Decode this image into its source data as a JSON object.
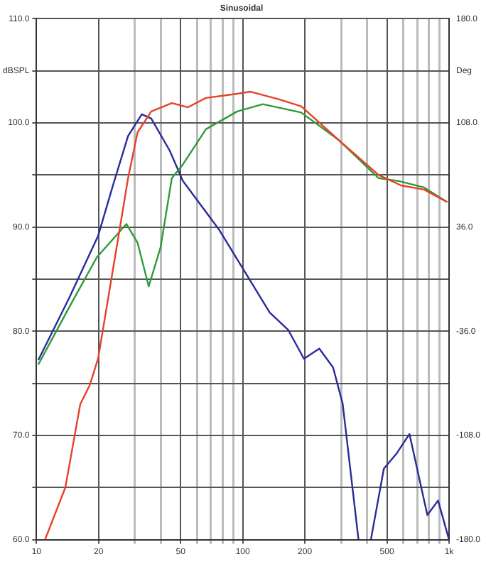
{
  "chart_data": {
    "type": "line",
    "title": "Sinusoidal",
    "log": "x",
    "grid": true,
    "legend": false,
    "marker": "none",
    "line_style": "solid",
    "xlim": [
      10,
      1000
    ],
    "xticks": [
      {
        "value": 10,
        "label": "10"
      },
      {
        "value": 20,
        "label": "20"
      },
      {
        "value": 30,
        "label": null
      },
      {
        "value": 40,
        "label": null
      },
      {
        "value": 50,
        "label": "50"
      },
      {
        "value": 60,
        "label": null
      },
      {
        "value": 70,
        "label": null
      },
      {
        "value": 80,
        "label": null
      },
      {
        "value": 90,
        "label": null
      },
      {
        "value": 100,
        "label": "100"
      },
      {
        "value": 200,
        "label": "200"
      },
      {
        "value": 300,
        "label": null
      },
      {
        "value": 400,
        "label": null
      },
      {
        "value": 500,
        "label": "500"
      },
      {
        "value": 600,
        "label": null
      },
      {
        "value": 700,
        "label": null
      },
      {
        "value": 800,
        "label": null
      },
      {
        "value": 900,
        "label": null
      },
      {
        "value": 1000,
        "label": "1k"
      }
    ],
    "ylim": [
      60,
      110
    ],
    "yticks": [
      {
        "value": 60,
        "label": "60.0"
      },
      {
        "value": 65,
        "label": null
      },
      {
        "value": 70,
        "label": "70.0"
      },
      {
        "value": 75,
        "label": null
      },
      {
        "value": 80,
        "label": "80.0"
      },
      {
        "value": 85,
        "label": null
      },
      {
        "value": 90,
        "label": "90.0"
      },
      {
        "value": 95,
        "label": null
      },
      {
        "value": 100,
        "label": "100.0"
      },
      {
        "value": 105,
        "label": "dBSPL"
      },
      {
        "value": 110,
        "label": "110.0"
      }
    ],
    "y2lim": [
      -180,
      180
    ],
    "y2ticks": [
      {
        "value": -180,
        "label": "-180.0"
      },
      {
        "value": -144,
        "label": null
      },
      {
        "value": -108,
        "label": "-108.0"
      },
      {
        "value": -72,
        "label": null
      },
      {
        "value": -36,
        "label": "-36.0"
      },
      {
        "value": 0,
        "label": null
      },
      {
        "value": 36,
        "label": "36.0"
      },
      {
        "value": 72,
        "label": null
      },
      {
        "value": 108,
        "label": "108.0"
      },
      {
        "value": 144,
        "label": "Deg"
      },
      {
        "value": 180,
        "label": "180.0"
      }
    ],
    "series": [
      {
        "color": "#e8402a",
        "x": [
          11,
          13.8,
          16.3,
          18.1,
          19.9,
          25.4,
          27.8,
          30.9,
          36,
          45.3,
          54.2,
          66.3,
          94,
          109,
          148,
          192,
          290,
          456,
          585,
          757,
          980
        ],
        "values": [
          60,
          65,
          73,
          74.8,
          77.4,
          90,
          94.7,
          99.1,
          101.1,
          101.9,
          101.5,
          102.4,
          102.8,
          103,
          102.3,
          101.6,
          98.4,
          95,
          94,
          93.6,
          92.4
        ]
      },
      {
        "color": "#2e9a3a",
        "x": [
          10.2,
          14.4,
          19.6,
          27.3,
          30.9,
          35,
          40,
          45.3,
          51.2,
          66.3,
          94,
          125,
          192,
          290,
          456,
          576,
          757,
          980
        ],
        "values": [
          76.8,
          82.3,
          87.1,
          90.3,
          88.5,
          84.3,
          88.1,
          94.7,
          96,
          99.4,
          101.1,
          101.8,
          101,
          98.4,
          94.7,
          94.4,
          93.8,
          92.4
        ]
      },
      {
        "color": "#2a2a9a",
        "axis": "y2",
        "x": [
          10.2,
          14.4,
          19.9,
          23.5,
          27.8,
          32.4,
          36,
          44.2,
          51.2,
          77,
          104.5,
          135,
          166,
          198,
          235,
          274,
          305,
          364,
          390,
          418,
          483,
          560,
          643,
          785,
          885,
          1000
        ],
        "values": [
          -56,
          -13,
          30,
          65,
          99,
          114,
          111,
          89,
          68,
          34,
          3,
          -23,
          -35,
          -55,
          -48,
          -61,
          -86,
          -180,
          null,
          -180,
          -131,
          -120,
          -107,
          -163,
          -153,
          -180
        ]
      }
    ]
  }
}
